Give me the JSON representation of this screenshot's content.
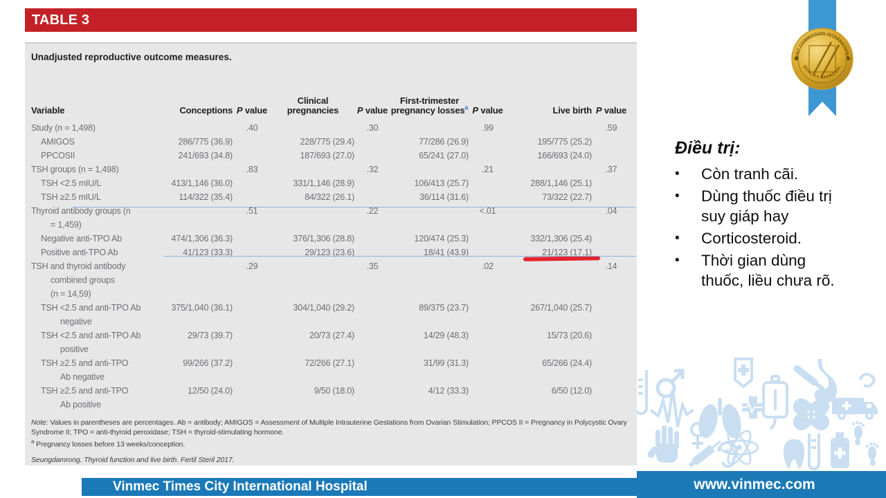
{
  "banner": {
    "label": "TABLE 3"
  },
  "table": {
    "caption": "Unadjusted reproductive outcome measures.",
    "columns": [
      {
        "label": "Variable"
      },
      {
        "label": "Conceptions"
      },
      {
        "label_italic": "P",
        "label": " value"
      },
      {
        "label": "Clinical pregnancies"
      },
      {
        "label_italic": "P",
        "label": " value"
      },
      {
        "label": "First-trimester pregnancy losses",
        "sup": "a"
      },
      {
        "label_italic": "P",
        "label": " value"
      },
      {
        "label": "Live birth"
      },
      {
        "label_italic": "P",
        "label": " value"
      }
    ],
    "rows": [
      {
        "label": "Study (n = 1,498)",
        "level": 0,
        "cells": [
          "",
          ".40",
          "",
          ".30",
          "",
          ".99",
          "",
          ".59"
        ]
      },
      {
        "label": "AMIGOS",
        "level": 1,
        "cells": [
          "286/775 (36.9)",
          "",
          "228/775 (29.4)",
          "",
          "77/286 (26.9)",
          "",
          "195/775 (25.2)",
          ""
        ]
      },
      {
        "label": "PPCOSII",
        "level": 1,
        "cells": [
          "241/693 (34.8)",
          "",
          "187/693 (27.0)",
          "",
          "65/241 (27.0)",
          "",
          "166/693 (24.0)",
          ""
        ]
      },
      {
        "label": "TSH groups (n = 1,498)",
        "level": 0,
        "cells": [
          "",
          ".83",
          "",
          ".32",
          "",
          ".21",
          "",
          ".37"
        ]
      },
      {
        "label": "TSH <2.5 mIU/L",
        "level": 1,
        "cells": [
          "413/1,146 (36.0)",
          "",
          "331/1,146 (28.9)",
          "",
          "106/413 (25.7)",
          "",
          "288/1,146 (25.1)",
          ""
        ]
      },
      {
        "label": "TSH ≥2.5 mIU/L",
        "level": 1,
        "cells": [
          "114/322 (35.4)",
          "",
          "84/322 (26.1)",
          "",
          "36/114 (31.6)",
          "",
          "73/322 (22.7)",
          ""
        ]
      },
      {
        "label": "Thyroid antibody groups (n\n= 1,459)",
        "level": 0,
        "cells": [
          "",
          ".51",
          "",
          ".22",
          "",
          "<.01",
          "",
          ".04"
        ]
      },
      {
        "label": "Negative anti-TPO Ab",
        "level": 1,
        "cells": [
          "474/1,306 (36.3)",
          "",
          "376/1,306 (28.8)",
          "",
          "120/474 (25.3)",
          "",
          "332/1,306 (25.4)",
          ""
        ]
      },
      {
        "label": "Positive anti-TPO Ab",
        "level": 1,
        "underline_live": true,
        "cells": [
          "41/123 (33.3)",
          "",
          "29/123 (23.6)",
          "",
          "18/41 (43.9)",
          "",
          "21/123 (17.1)",
          ""
        ]
      },
      {
        "label": "TSH and thyroid antibody\ncombined groups\n(n = 14,59)",
        "level": 0,
        "cells": [
          "",
          ".29",
          "",
          ".35",
          "",
          ".02",
          "",
          ".14"
        ]
      },
      {
        "label": "TSH <2.5 and anti-TPO Ab\nnegative",
        "level": 1,
        "cells": [
          "375/1,040 (36.1)",
          "",
          "304/1,040 (29.2)",
          "",
          "89/375 (23.7)",
          "",
          "267/1,040 (25.7)",
          ""
        ]
      },
      {
        "label": "TSH <2.5 and anti-TPO Ab\npositive",
        "level": 1,
        "cells": [
          "29/73 (39.7)",
          "",
          "20/73 (27.4)",
          "",
          "14/29 (48.3)",
          "",
          "15/73 (20.6)",
          ""
        ]
      },
      {
        "label": "TSH ≥2.5 and anti-TPO\nAb negative",
        "level": 1,
        "cells": [
          "99/266 (37.2)",
          "",
          "72/266 (27.1)",
          "",
          "31/99 (31.3)",
          "",
          "65/266 (24.4)",
          ""
        ]
      },
      {
        "label": "TSH ≥2.5 and anti-TPO\nAb positive",
        "level": 1,
        "cells": [
          "12/50 (24.0)",
          "",
          "9/50 (18.0)",
          "",
          "4/12 (33.3)",
          "",
          "6/50 (12.0)",
          ""
        ]
      }
    ],
    "footnotes": {
      "note_label": "Note:",
      "note_text": " Values in parentheses are percentages. Ab = antibody; AMIGOS = Assessment of Multiple Intrauterine Gestations from Ovarian Stimulation; PPCOS II = Pregnancy in Polycystic Ovary Syndrome II; TPO = anti-thyroid peroxidase; TSH = thyroid-stimulating hormone.",
      "sup_label": "a",
      "sup_text": " Pregnancy losses before 13 weeks/conception.",
      "citation": "Seungdamrong. Thyroid function and live birth. Fertil Steril 2017."
    }
  },
  "notes_panel": {
    "title": "Điều trị:",
    "bullet_char": "•",
    "bullets": [
      "Còn tranh cãi.",
      "Dùng thuốc điều trị\nsuy giáp hay",
      "Corticosteroid.",
      "Thời gian dùng\nthuốc, liều chưa rõ."
    ]
  },
  "badge": {
    "top_text": "JOINT COMMISSION INTERNATIONAL",
    "bottom_text": "QUALITY APPROVAL"
  },
  "footer": {
    "hospital": "Vinmec Times City International Hospital",
    "website": "www.vinmec.com"
  },
  "colors": {
    "banner_red": "#c32127",
    "table_bg": "#e8e7e8",
    "header_text": "#1d1d1f",
    "data_text": "#6d6e71",
    "footer_blue": "#1b79b7",
    "ribbon_blue": "#3d97d3",
    "medal_gold": "#d3a02c",
    "icons_blue": "#c9def1",
    "annotation_blue": "#8fb2dc",
    "annotation_red": "#e4232d",
    "superscript_blue": "#2d7fc0"
  }
}
